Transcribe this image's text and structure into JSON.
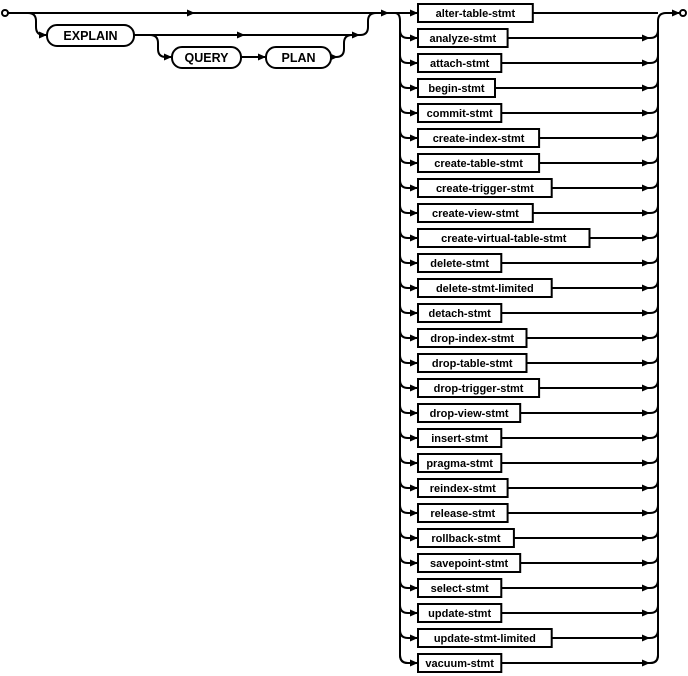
{
  "diagram": {
    "keywords": [
      "EXPLAIN",
      "QUERY",
      "PLAN"
    ],
    "statements": [
      "alter-table-stmt",
      "analyze-stmt",
      "attach-stmt",
      "begin-stmt",
      "commit-stmt",
      "create-index-stmt",
      "create-table-stmt",
      "create-trigger-stmt",
      "create-view-stmt",
      "create-virtual-table-stmt",
      "delete-stmt",
      "delete-stmt-limited",
      "detach-stmt",
      "drop-index-stmt",
      "drop-table-stmt",
      "drop-trigger-stmt",
      "drop-view-stmt",
      "insert-stmt",
      "pragma-stmt",
      "reindex-stmt",
      "release-stmt",
      "rollback-stmt",
      "savepoint-stmt",
      "select-stmt",
      "update-stmt",
      "update-stmt-limited",
      "vacuum-stmt"
    ]
  }
}
